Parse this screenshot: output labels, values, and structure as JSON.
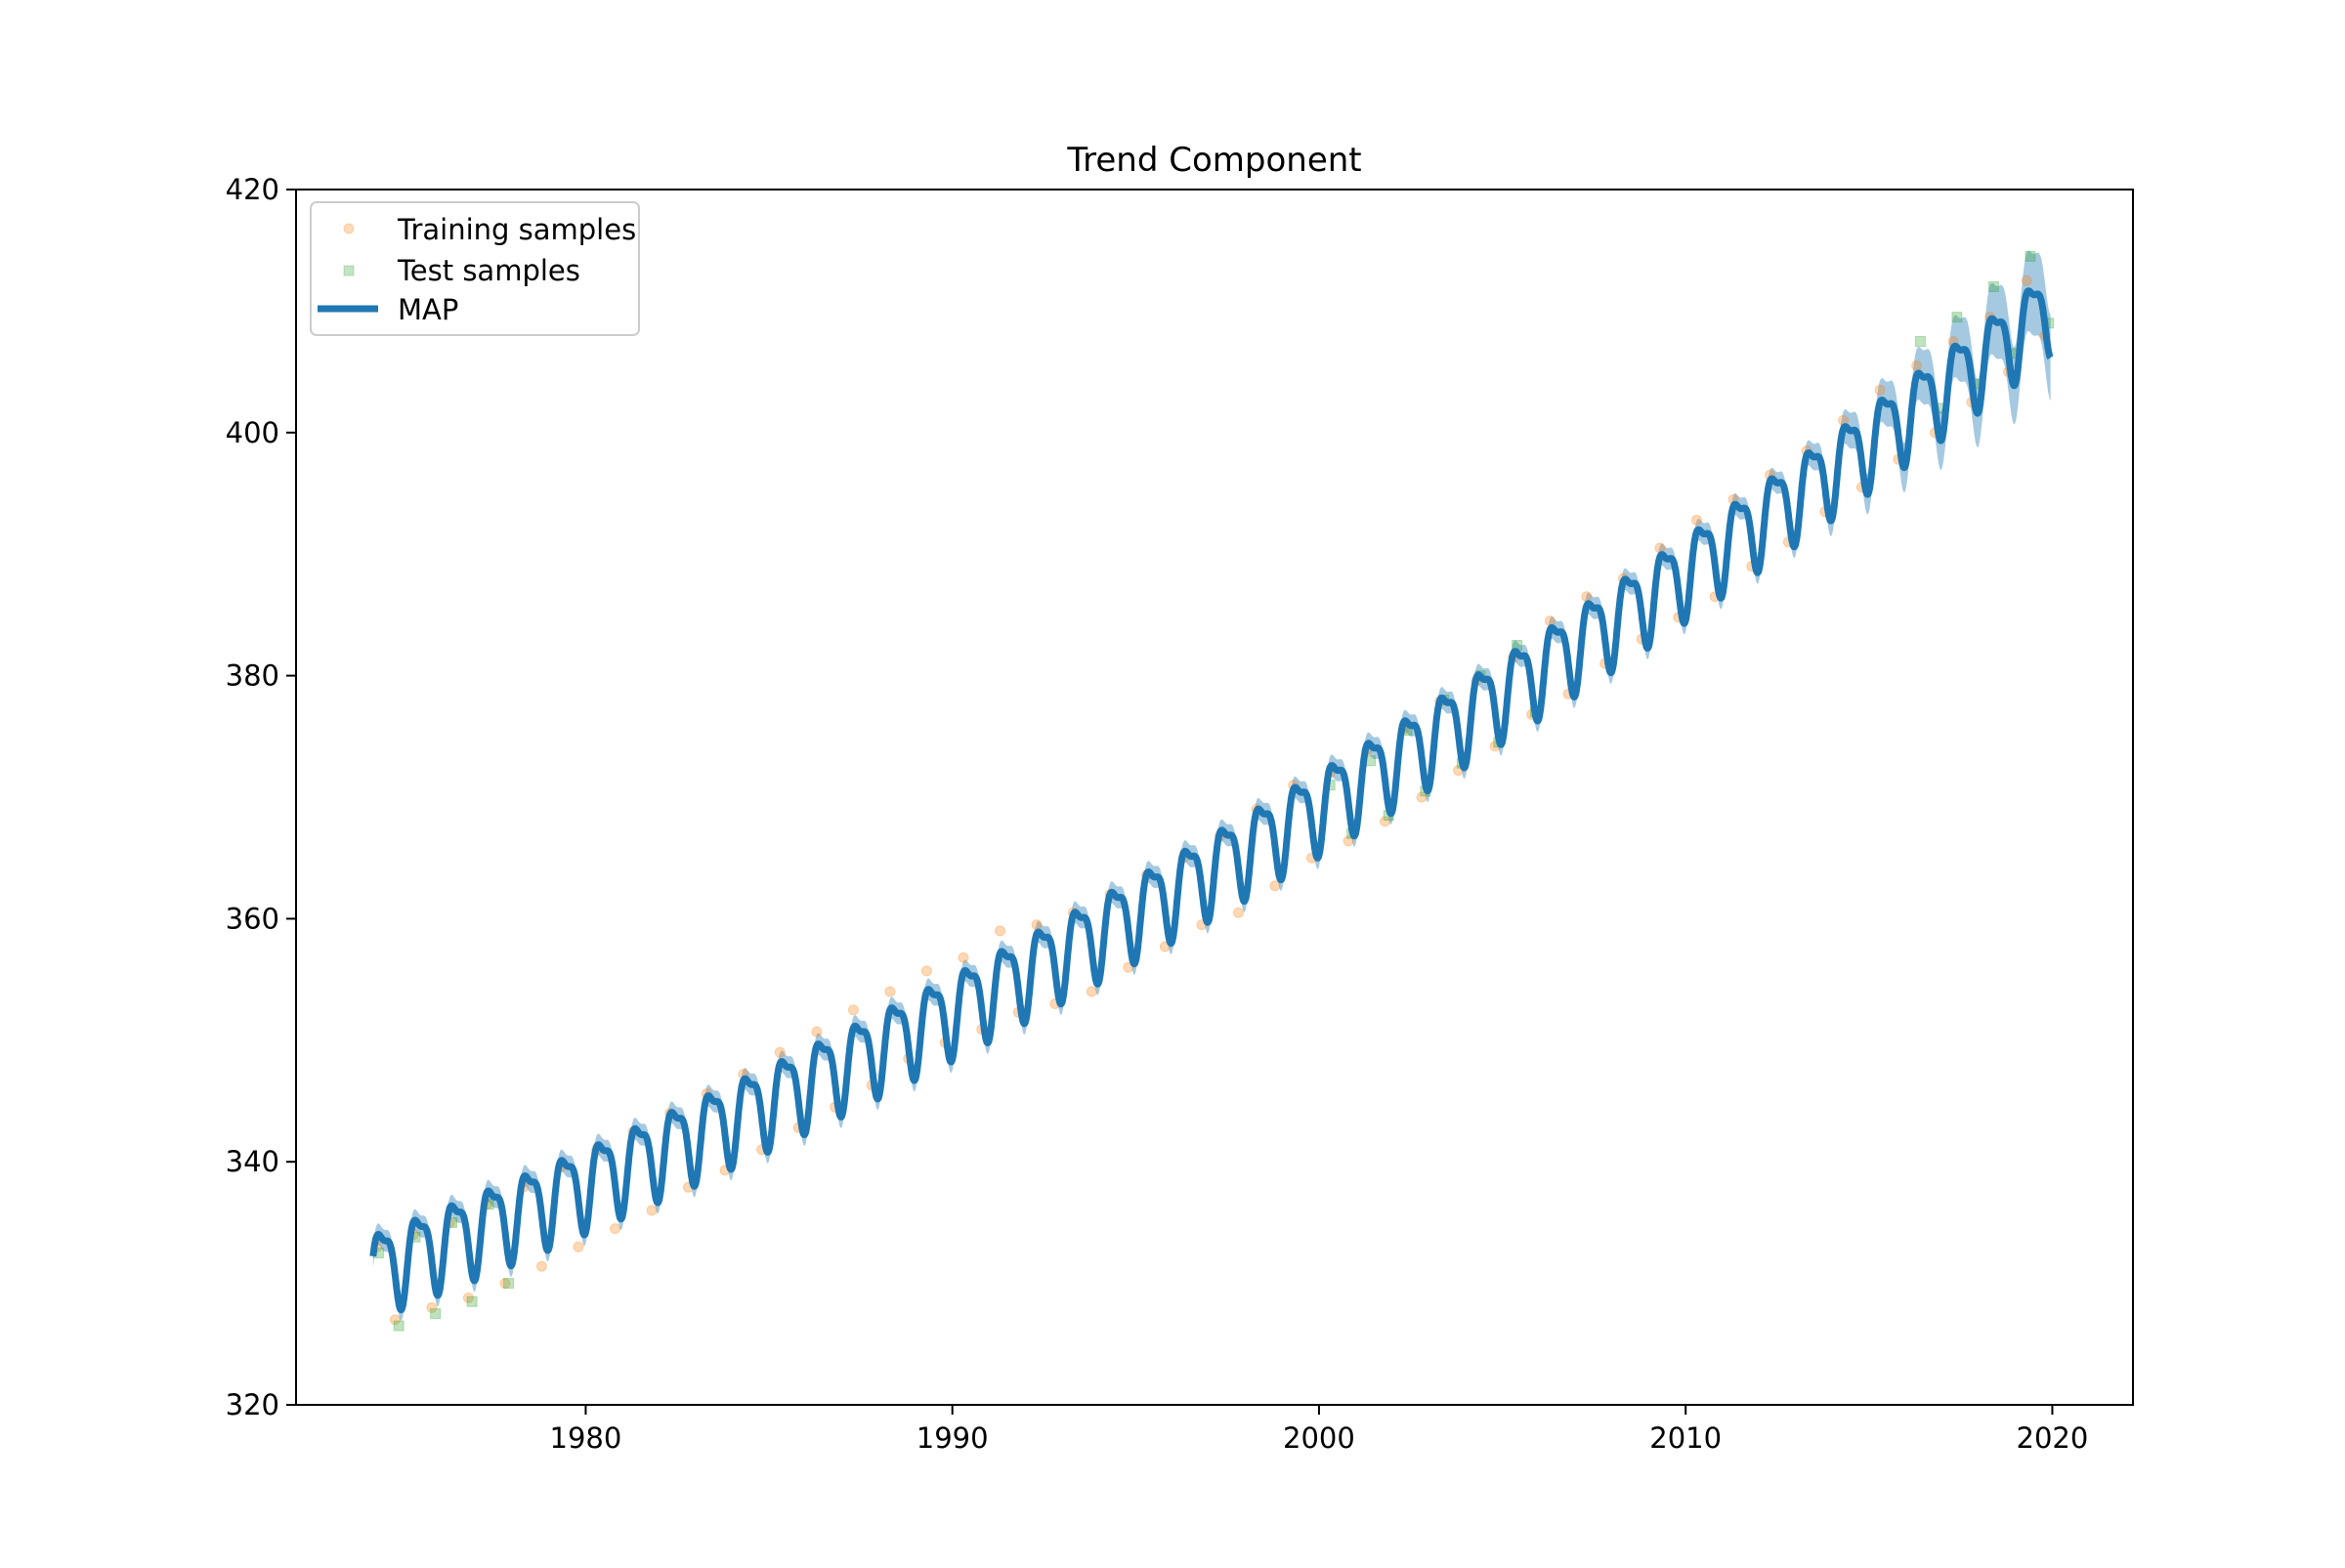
{
  "chart_data": {
    "type": "line",
    "title": "Trend Component",
    "xlabel": "",
    "ylabel": "",
    "xlim": [
      1972.1,
      2022.2
    ],
    "ylim": [
      320,
      420
    ],
    "x_ticks": [
      1980,
      1990,
      2000,
      2010,
      2020
    ],
    "y_ticks": [
      320,
      340,
      360,
      380,
      400,
      420
    ],
    "grid": false,
    "legend": {
      "placement": "top-left",
      "entries": [
        "Training samples",
        "Test samples",
        "MAP"
      ]
    },
    "colors": {
      "training": "#ff7f0e",
      "test": "#2ca02c",
      "map": "#1f77b4",
      "band": "#1f77b4"
    },
    "series": [
      {
        "name": "Training samples",
        "kind": "scatter",
        "marker": "circle",
        "x": [
          1974.3,
          1974.8,
          1975.3,
          1975.8,
          1976.3,
          1976.8,
          1977.3,
          1977.8,
          1978.3,
          1978.8,
          1979.3,
          1979.8,
          1980.3,
          1980.8,
          1981.3,
          1981.8,
          1982.3,
          1982.8,
          1983.3,
          1983.8,
          1984.3,
          1984.8,
          1985.3,
          1985.8,
          1986.3,
          1986.8,
          1987.3,
          1987.8,
          1988.3,
          1988.8,
          1989.3,
          1989.8,
          1990.3,
          1990.8,
          1991.3,
          1991.8,
          1992.3,
          1992.8,
          1993.3,
          1993.8,
          1994.3,
          1994.8,
          1995.3,
          1995.8,
          1996.3,
          1996.8,
          1997.3,
          1997.8,
          1998.3,
          1998.8,
          1999.3,
          1999.8,
          2000.3,
          2000.8,
          2001.3,
          2001.8,
          2002.3,
          2002.8,
          2003.3,
          2003.8,
          2004.3,
          2004.8,
          2005.3,
          2005.8,
          2006.3,
          2006.8,
          2007.3,
          2007.8,
          2008.3,
          2008.8,
          2009.3,
          2009.8,
          2010.3,
          2010.8,
          2011.3,
          2011.8,
          2012.3,
          2012.8,
          2013.3,
          2013.8,
          2014.3,
          2014.8,
          2015.3,
          2015.8,
          2016.3,
          2016.8,
          2017.3,
          2017.8,
          2018.3,
          2018.8,
          2019.3,
          2019.8
        ],
        "y": [
          333.0,
          327.0,
          334.0,
          328.0,
          335.0,
          328.8,
          336.5,
          330.0,
          337.9,
          331.4,
          339.5,
          333.0,
          341.0,
          334.5,
          342.5,
          336.0,
          344.0,
          337.9,
          345.6,
          339.3,
          347.2,
          341.0,
          349.0,
          342.8,
          350.7,
          344.5,
          352.5,
          346.3,
          354.0,
          348.5,
          355.7,
          349.8,
          356.8,
          350.9,
          359.0,
          352.3,
          359.5,
          353.0,
          360.5,
          354.0,
          362.0,
          356.0,
          363.6,
          357.7,
          365.0,
          359.5,
          366.8,
          360.5,
          369.0,
          362.7,
          371.0,
          365.0,
          372.0,
          366.4,
          373.8,
          368.0,
          375.6,
          370.0,
          377.9,
          372.2,
          379.6,
          374.2,
          381.5,
          376.8,
          384.5,
          378.5,
          386.5,
          381.0,
          388.0,
          383.0,
          390.5,
          384.8,
          392.8,
          386.5,
          394.5,
          389.0,
          396.5,
          391.0,
          398.5,
          393.5,
          401.0,
          395.5,
          403.5,
          397.8,
          405.5,
          400.0,
          407.5,
          402.5,
          409.5,
          405.0,
          412.5,
          408.0
        ]
      },
      {
        "name": "Test samples",
        "kind": "scatter",
        "marker": "square",
        "x": [
          1974.35,
          1974.9,
          1975.35,
          1975.9,
          1976.35,
          1976.9,
          1977.35,
          1977.9,
          2000.3,
          2000.9,
          2001.4,
          2001.9,
          2002.4,
          2002.9,
          2003.4,
          2003.9,
          2004.4,
          2004.9,
          2005.4,
          2005.9,
          2016.4,
          2016.9,
          2017.4,
          2017.9,
          2018.4,
          2018.9,
          2019.4,
          2019.9
        ],
        "y": [
          332.5,
          326.5,
          333.8,
          327.5,
          335.0,
          328.5,
          336.5,
          330.0,
          371.0,
          367.0,
          373.0,
          368.5,
          375.5,
          370.5,
          378.0,
          372.8,
          380.0,
          374.5,
          382.5,
          377.0,
          407.5,
          402.0,
          409.5,
          404.0,
          412.0,
          406.5,
          414.5,
          409.0
        ]
      },
      {
        "name": "MAP",
        "kind": "line",
        "x_start": 1974.2,
        "x_end": 2019.95,
        "equation": "y = 331.2 + 1.15*(x-1974.2) + 0.0127*(x-1974.2)^2 + 3.2*sin(2*pi*(x-1974.2)) + 1.1*sin(4*pi*(x-1974.2)+1.2)"
      }
    ]
  }
}
